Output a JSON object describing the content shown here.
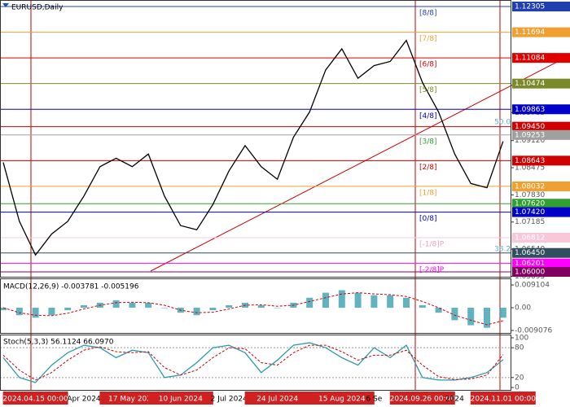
{
  "chart_data": [
    {
      "type": "line",
      "title": "EURUSD,Daily",
      "categories": [
        null,
        null,
        "2024.04.15 00:00",
        null,
        null,
        "Apr 2024",
        null,
        null,
        "17 May 2024",
        null,
        null,
        "10 Jun 2024",
        null,
        null,
        "2 Jul 2024",
        null,
        null,
        "24 Jul 2024",
        null,
        null,
        null,
        "15 Aug 2024",
        null,
        "6 Se",
        null,
        null,
        "2024.09.26 00:00",
        null,
        "2024",
        null,
        null,
        "2024.11.01 00:00"
      ],
      "series": [
        {
          "color": "#000000",
          "values": [
            1.086,
            1.072,
            1.064,
            1.069,
            1.072,
            1.078,
            1.085,
            1.087,
            1.085,
            1.088,
            1.078,
            1.071,
            1.07,
            1.076,
            1.084,
            1.09,
            1.085,
            1.082,
            1.092,
            1.098,
            1.108,
            1.113,
            1.106,
            1.109,
            1.11,
            1.115,
            1.105,
            1.098,
            1.088,
            1.081,
            1.08,
            1.091
          ]
        }
      ],
      "ylim": [
        1.05884,
        1.12421
      ],
      "yticks": [
        1.09785,
        {
          "value": 1.0912,
          "label": "1.09120"
        },
        1.08475,
        {
          "value": 1.0783,
          "label": "1.07830"
        },
        1.07185,
        {
          "value": 1.0654,
          "label": "1.06540"
        },
        1.05895
      ],
      "levels": [
        {
          "value": 1.12305,
          "label": "1.12305",
          "color": "#2040b0"
        },
        {
          "value": 1.11694,
          "label": "1.11694",
          "color": "#f0a030"
        },
        {
          "value": 1.11084,
          "label": "1.11084",
          "color": "#e00000"
        },
        {
          "value": 1.10474,
          "label": "1.10474",
          "color": "#7a8a2a"
        },
        {
          "value": 1.09863,
          "label": "1.09863",
          "color": "#0000c8"
        },
        {
          "value": 1.0945,
          "label": "1.09450",
          "color": "#d00000"
        },
        {
          "value": 1.09253,
          "label": "1.09253",
          "color": "#a0a0a0"
        },
        {
          "value": 1.08643,
          "label": "1.08643",
          "color": "#d00000"
        },
        {
          "value": 1.08032,
          "label": "1.08032",
          "color": "#f0a030"
        },
        {
          "value": 1.0762,
          "label": "1.07620",
          "color": "#30a030"
        },
        {
          "value": 1.0742,
          "label": "1.07420",
          "color": "#0000c8"
        },
        {
          "value": 1.06812,
          "label": "1.06812",
          "color": "#f8c8d8"
        },
        {
          "value": 1.0645,
          "label": "1.06450",
          "color": "#2f4f5f"
        },
        {
          "value": 1.06201,
          "label": "1.06201",
          "color": "#ff00ff"
        },
        {
          "value": 1.06,
          "label": "1.06000",
          "color": "#800060"
        }
      ],
      "murrey": [
        {
          "value": 1.12305,
          "label": "[8/8]",
          "color": "#2040b0"
        },
        {
          "value": 1.11694,
          "label": "[7/8]",
          "color": "#f0a030"
        },
        {
          "value": 1.11084,
          "label": "[6/8]",
          "color": "#e00000"
        },
        {
          "value": 1.10474,
          "label": "[5/8]",
          "color": "#7a8a2a"
        },
        {
          "value": 1.09863,
          "label": "[4/8]",
          "color": "#0000c8"
        },
        {
          "value": 1.09253,
          "label": "[3/8]",
          "color": "#30a030"
        },
        {
          "value": 1.08643,
          "label": "[2/8]",
          "color": "#d00000"
        },
        {
          "value": 1.08032,
          "label": "[1/8]",
          "color": "#f0a030"
        },
        {
          "value": 1.07422,
          "label": "[0/8]",
          "color": "#0000c8"
        },
        {
          "value": 1.06812,
          "label": "[-1/8]P",
          "color": "#f0a0c0"
        },
        {
          "value": 1.06201,
          "label": "[-2/8]P",
          "color": "#ff00ff"
        }
      ],
      "annotations": [
        {
          "value": 1.0956,
          "label": "50.0"
        },
        {
          "value": 1.0654,
          "label": "38.2"
        }
      ]
    },
    {
      "type": "macd",
      "title": "MACD(12,26,9) -0.003781 -0.005196",
      "ylim": [
        -0.0104,
        0.0114
      ],
      "yticks": [
        0.009104,
        {
          "value": 0,
          "label": "0.00"
        },
        -0.009076
      ],
      "series": [
        {
          "color": "#3aa0b0",
          "values": [
            -0.001,
            -0.003,
            -0.004,
            -0.003,
            -0.001,
            0.001,
            0.002,
            0.003,
            0.002,
            0.002,
            0,
            -0.002,
            -0.003,
            -0.001,
            0.001,
            0.002,
            0.001,
            0,
            0.002,
            0.004,
            0.006,
            0.007,
            0.006,
            0.005,
            0.005,
            0.004,
            0.001,
            -0.002,
            -0.005,
            -0.007,
            -0.008,
            -0.004
          ]
        },
        {
          "color": "#d00000",
          "values": [
            0,
            -0.002,
            -0.003,
            -0.0032,
            -0.0022,
            -0.0005,
            0.001,
            0.002,
            0.0022,
            0.002,
            0.001,
            -0.001,
            -0.002,
            -0.0018,
            -0.0005,
            0.001,
            0.0012,
            0.0006,
            0.001,
            0.0025,
            0.004,
            0.0055,
            0.006,
            0.0055,
            0.0052,
            0.0045,
            0.0025,
            0,
            -0.003,
            -0.005,
            -0.0068,
            -0.0052
          ]
        }
      ]
    },
    {
      "type": "stochastic",
      "title": "Stoch(5,3,3) 56.1124 66.0970",
      "ylim": [
        -6.5,
        106.5
      ],
      "yticks": [
        100,
        80,
        20,
        0
      ],
      "dashed_levels": [
        80,
        20
      ],
      "series": [
        {
          "color": "#2a9ab0",
          "values": [
            60,
            20,
            10,
            45,
            70,
            85,
            80,
            60,
            75,
            70,
            20,
            25,
            50,
            80,
            85,
            70,
            30,
            55,
            85,
            90,
            80,
            60,
            45,
            80,
            60,
            85,
            20,
            15,
            15,
            20,
            30,
            56
          ]
        },
        {
          "color": "#d00000",
          "values": [
            65,
            35,
            15,
            30,
            55,
            75,
            82,
            72,
            70,
            72,
            40,
            25,
            35,
            60,
            80,
            78,
            50,
            45,
            70,
            85,
            85,
            72,
            55,
            65,
            65,
            75,
            45,
            22,
            16,
            17,
            25,
            66
          ]
        }
      ]
    }
  ]
}
